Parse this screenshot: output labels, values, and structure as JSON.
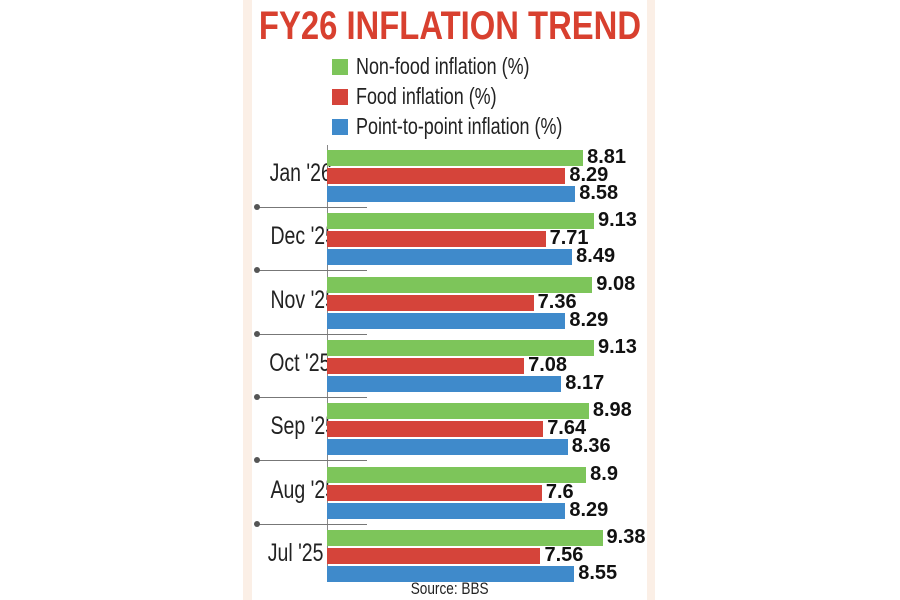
{
  "chart_data": {
    "type": "bar",
    "orientation": "horizontal",
    "title": "FY26 INFLATION TREND",
    "categories": [
      "Jan '26",
      "Dec '25",
      "Nov '25",
      "Oct '25",
      "Sep '25",
      "Aug '25",
      "Jul '25"
    ],
    "series": [
      {
        "name": "Non-food inflation (%)",
        "color": "#7dc55a",
        "values": [
          8.81,
          9.13,
          9.08,
          9.13,
          8.98,
          8.9,
          9.38
        ]
      },
      {
        "name": "Food inflation (%)",
        "color": "#d5443a",
        "values": [
          8.29,
          7.71,
          7.36,
          7.08,
          7.64,
          7.6,
          7.56
        ]
      },
      {
        "name": "Point-to-point inflation (%)",
        "color": "#3f8acb",
        "values": [
          8.58,
          8.49,
          8.29,
          8.17,
          8.36,
          8.29,
          8.55
        ]
      }
    ],
    "source": "Source: BBS",
    "xlabel": "",
    "ylabel": "",
    "legend": "top",
    "grid": false
  }
}
